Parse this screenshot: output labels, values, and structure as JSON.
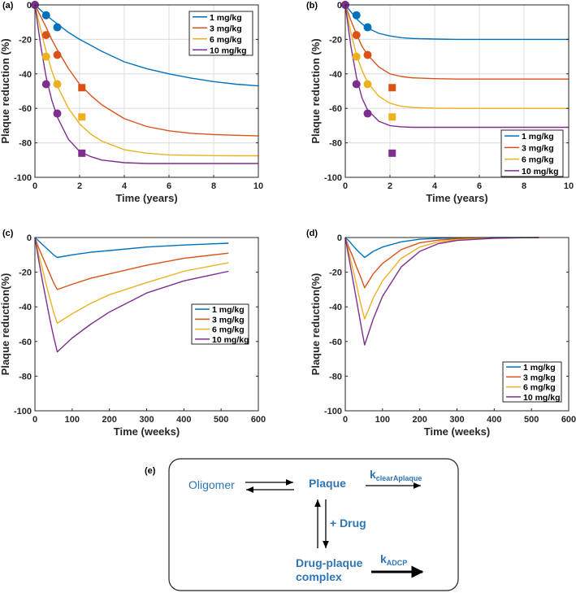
{
  "colors": {
    "1 mg/kg": "#0072BD",
    "3 mg/kg": "#D95319",
    "6 mg/kg": "#EDB120",
    "10 mg/kg": "#7E2F8E"
  },
  "chart_data": [
    {
      "panel_label": "(a)",
      "type": "line",
      "xlabel": "Time (years)",
      "ylabel": "Plaque reduction (%)",
      "xlim": [
        0,
        10
      ],
      "ylim": [
        -100,
        0
      ],
      "xticks": [
        0,
        2,
        4,
        6,
        8,
        10
      ],
      "yticks": [
        0,
        -20,
        -40,
        -60,
        -80,
        -100
      ],
      "grid": true,
      "legend": "top-right",
      "x": [
        0,
        0.25,
        0.5,
        0.75,
        1,
        1.5,
        2,
        2.5,
        3,
        4,
        5,
        6,
        7,
        8,
        9,
        10
      ],
      "series": [
        {
          "name": "1 mg/kg",
          "values": [
            0,
            -3,
            -6,
            -8.5,
            -11,
            -16,
            -20,
            -23.5,
            -27,
            -33,
            -37,
            -40,
            -42.5,
            -44.5,
            -46,
            -47
          ]
        },
        {
          "name": "3 mg/kg",
          "values": [
            0,
            -6.5,
            -13,
            -20,
            -26,
            -37,
            -46,
            -52.5,
            -58,
            -66,
            -70.5,
            -73,
            -74.5,
            -75.2,
            -75.6,
            -76
          ]
        },
        {
          "name": "6 mg/kg",
          "values": [
            0,
            -14,
            -27,
            -38,
            -47,
            -60,
            -69,
            -75,
            -79,
            -84,
            -86,
            -87,
            -87.2,
            -87.4,
            -87.5,
            -87.5
          ]
        },
        {
          "name": "10 mg/kg",
          "values": [
            0,
            -23,
            -42,
            -55,
            -65,
            -78,
            -85,
            -88,
            -90,
            -91.5,
            -92,
            -92,
            -92,
            -92,
            -92,
            -92
          ]
        }
      ],
      "observed": [
        {
          "series": "1 mg/kg",
          "marker": "circle",
          "x": [
            0,
            0.5,
            1
          ],
          "y": [
            0,
            -6,
            -13
          ]
        },
        {
          "series": "3 mg/kg",
          "marker": "circle",
          "x": [
            0.5,
            1
          ],
          "y": [
            -17.5,
            -29
          ]
        },
        {
          "series": "6 mg/kg",
          "marker": "circle",
          "x": [
            0.5,
            1
          ],
          "y": [
            -30,
            -46
          ]
        },
        {
          "series": "10 mg/kg",
          "marker": "circle",
          "x": [
            0,
            0.5,
            1
          ],
          "y": [
            0,
            -46,
            -63
          ]
        },
        {
          "series": "3 mg/kg",
          "marker": "square",
          "x": [
            2.1
          ],
          "y": [
            -48
          ]
        },
        {
          "series": "6 mg/kg",
          "marker": "square",
          "x": [
            2.1
          ],
          "y": [
            -65
          ]
        },
        {
          "series": "10 mg/kg",
          "marker": "square",
          "x": [
            2.1
          ],
          "y": [
            -86
          ]
        }
      ]
    },
    {
      "panel_label": "(b)",
      "type": "line",
      "xlabel": "Time (years)",
      "ylabel": "Plaque reduction (%)",
      "xlim": [
        0,
        10
      ],
      "ylim": [
        -100,
        0
      ],
      "xticks": [
        0,
        2,
        4,
        6,
        8,
        10
      ],
      "yticks": [
        0,
        -20,
        -40,
        -60,
        -80,
        -100
      ],
      "grid": true,
      "legend": "bottom-right",
      "x": [
        0,
        0.25,
        0.5,
        0.75,
        1,
        1.5,
        2,
        2.5,
        3,
        4,
        5,
        6,
        7,
        8,
        9,
        10
      ],
      "series": [
        {
          "name": "1 mg/kg",
          "values": [
            0,
            -4,
            -8,
            -11,
            -13.5,
            -16.5,
            -18,
            -19,
            -19.5,
            -19.8,
            -20,
            -20,
            -20,
            -20,
            -20,
            -20
          ]
        },
        {
          "name": "3 mg/kg",
          "values": [
            0,
            -9,
            -17,
            -24,
            -29,
            -36,
            -40,
            -41.5,
            -42.3,
            -42.8,
            -43,
            -43,
            -43,
            -43,
            -43,
            -43
          ]
        },
        {
          "name": "6 mg/kg",
          "values": [
            0,
            -16,
            -29,
            -38,
            -45,
            -53,
            -57,
            -58.8,
            -59.5,
            -59.9,
            -60,
            -60,
            -60,
            -60,
            -60,
            -60
          ]
        },
        {
          "name": "10 mg/kg",
          "values": [
            0,
            -24,
            -42,
            -54,
            -61,
            -67.5,
            -70,
            -70.7,
            -71,
            -71,
            -71,
            -71,
            -71,
            -71,
            -71,
            -71
          ]
        }
      ],
      "observed": [
        {
          "series": "1 mg/kg",
          "marker": "circle",
          "x": [
            0,
            0.5,
            1
          ],
          "y": [
            0,
            -6,
            -13
          ]
        },
        {
          "series": "3 mg/kg",
          "marker": "circle",
          "x": [
            0.5,
            1
          ],
          "y": [
            -17.5,
            -29
          ]
        },
        {
          "series": "6 mg/kg",
          "marker": "circle",
          "x": [
            0.5,
            1
          ],
          "y": [
            -30,
            -46
          ]
        },
        {
          "series": "10 mg/kg",
          "marker": "circle",
          "x": [
            0,
            0.5,
            1
          ],
          "y": [
            0,
            -46,
            -63
          ]
        },
        {
          "series": "3 mg/kg",
          "marker": "square",
          "x": [
            2.1
          ],
          "y": [
            -48
          ]
        },
        {
          "series": "6 mg/kg",
          "marker": "square",
          "x": [
            2.1
          ],
          "y": [
            -65
          ]
        },
        {
          "series": "10 mg/kg",
          "marker": "square",
          "x": [
            2.1
          ],
          "y": [
            -86
          ]
        }
      ]
    },
    {
      "panel_label": "(c)",
      "type": "line",
      "xlabel": "Time (weeks)",
      "ylabel": "Plaque reduction(%)",
      "xlim": [
        0,
        600
      ],
      "ylim": [
        -100,
        0
      ],
      "xticks": [
        0,
        100,
        200,
        300,
        400,
        500,
        600
      ],
      "yticks": [
        0,
        -20,
        -40,
        -60,
        -80,
        -100
      ],
      "grid": false,
      "legend": "center-right",
      "x": [
        0,
        10,
        20,
        30,
        40,
        50,
        60,
        100,
        150,
        200,
        300,
        400,
        520
      ],
      "series": [
        {
          "name": "1 mg/kg",
          "values": [
            0,
            -2,
            -4,
            -6,
            -8,
            -10,
            -11.5,
            -10,
            -8.5,
            -7.5,
            -5.5,
            -4.3,
            -3.3
          ]
        },
        {
          "name": "3 mg/kg",
          "values": [
            0,
            -6,
            -11,
            -16,
            -21,
            -26,
            -30,
            -27,
            -23.5,
            -21,
            -16,
            -12,
            -9
          ]
        },
        {
          "name": "6 mg/kg",
          "values": [
            0,
            -10,
            -18,
            -27,
            -35,
            -43,
            -49.5,
            -44,
            -38,
            -33,
            -26,
            -19.5,
            -14.5
          ]
        },
        {
          "name": "10 mg/kg",
          "values": [
            0,
            -13,
            -25,
            -36,
            -47,
            -57,
            -66,
            -58,
            -50,
            -43,
            -32,
            -25,
            -19.5
          ]
        }
      ],
      "observed": []
    },
    {
      "panel_label": "(d)",
      "type": "line",
      "xlabel": "Time (weeks)",
      "ylabel": "Plaque reduction(%)",
      "xlim": [
        0,
        600
      ],
      "ylim": [
        -100,
        0
      ],
      "xticks": [
        0,
        100,
        200,
        300,
        400,
        500,
        600
      ],
      "yticks": [
        0,
        -20,
        -40,
        -60,
        -80,
        -100
      ],
      "grid": false,
      "legend": "bottom-right",
      "x": [
        0,
        10,
        20,
        30,
        40,
        52,
        75,
        100,
        150,
        200,
        250,
        300,
        400,
        520
      ],
      "series": [
        {
          "name": "1 mg/kg",
          "values": [
            0,
            -2,
            -4.5,
            -7,
            -9,
            -11.5,
            -8,
            -5.5,
            -2.5,
            -1,
            -0.5,
            -0.2,
            0,
            0
          ]
        },
        {
          "name": "3 mg/kg",
          "values": [
            0,
            -6,
            -11,
            -17,
            -22,
            -29,
            -21,
            -15,
            -7,
            -3,
            -1.5,
            -0.7,
            -0.2,
            0
          ]
        },
        {
          "name": "6 mg/kg",
          "values": [
            0,
            -9,
            -18,
            -27,
            -37,
            -47,
            -35,
            -25,
            -12,
            -5.5,
            -2.5,
            -1.2,
            -0.3,
            0
          ]
        },
        {
          "name": "10 mg/kg",
          "values": [
            0,
            -12,
            -24,
            -36,
            -48,
            -62,
            -47,
            -34,
            -17,
            -8,
            -3.5,
            -1.7,
            -0.4,
            0
          ]
        }
      ],
      "observed": []
    }
  ],
  "diagram": {
    "panel_label": "(e)",
    "oligomer": "Oligomer",
    "plaque": "Plaque",
    "k_clear": "k",
    "k_clear_sub": "clearAplaque",
    "drug": "+ Drug",
    "complex_line1": "Drug-plaque",
    "complex_line2": "complex",
    "k_adcp": "k",
    "k_adcp_sub": "ADCP"
  }
}
